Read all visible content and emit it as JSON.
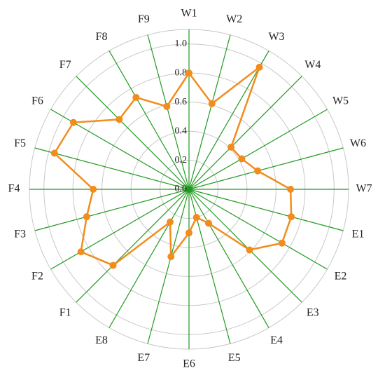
{
  "chart_data": {
    "type": "radar",
    "categories": [
      "W1",
      "W2",
      "W3",
      "W4",
      "W5",
      "W6",
      "W7",
      "E1",
      "E2",
      "E3",
      "E4",
      "E5",
      "E6",
      "E7",
      "E8",
      "F1",
      "F2",
      "F3",
      "F4",
      "F5",
      "F6",
      "F7",
      "F8",
      "F9"
    ],
    "values": [
      0.8,
      0.61,
      0.97,
      0.41,
      0.42,
      0.49,
      0.7,
      0.73,
      0.74,
      0.59,
      0.27,
      0.2,
      0.3,
      0.48,
      0.26,
      0.74,
      0.86,
      0.73,
      0.66,
      0.96,
      0.92,
      0.68,
      0.73,
      0.59
    ],
    "color": "#f28c1c",
    "ylim": [
      0,
      1.1
    ],
    "yticks": [
      {
        "value": 0,
        "label": "0.0"
      },
      0.2,
      0.4,
      0.6,
      0.8,
      {
        "value": 1,
        "label": "1.0"
      }
    ],
    "grid": true
  }
}
